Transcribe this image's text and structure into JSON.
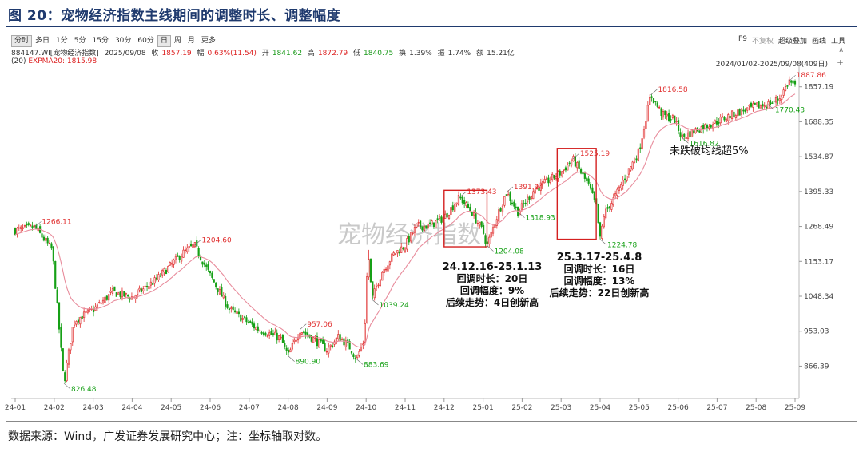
{
  "figure": {
    "title": "图 20：宠物经济指数主线期间的调整时长、调整幅度",
    "source": "数据来源：Wind，广发证券发展研究中心；注：坐标轴取对数。"
  },
  "toolbar": {
    "periods": [
      "分时",
      "多日",
      "1分",
      "5分",
      "15分",
      "30分",
      "60分",
      "日",
      "周",
      "月",
      "更多"
    ],
    "active_period": "日",
    "right_items": [
      "F9",
      "不复权",
      "超级叠加",
      "画线",
      "工具"
    ]
  },
  "quote": {
    "code": "884147.WI[宠物经济指数]",
    "date": "2025/09/08",
    "close_label": "收",
    "close": "1857.19",
    "change_label": "幅",
    "change": "0.63%(11.54)",
    "open_label": "开",
    "open": "1841.62",
    "high_label": "高",
    "high": "1872.79",
    "low_label": "低",
    "low": "1840.75",
    "turnover_label": "换",
    "turnover": "1.39%",
    "amplitude_label": "振",
    "amplitude": "1.74%",
    "amount_label": "额",
    "amount": "15.21亿"
  },
  "ema": {
    "label": "(20)",
    "name": "EXPMA20:",
    "value": "1815.98"
  },
  "range_text": "2024/01/02-2025/09/08(409日)",
  "colors": {
    "up": "#e03030",
    "down": "#16a016",
    "ema": "#e88c9c",
    "annotation": "#d42020",
    "title": "#1f3a6e"
  },
  "chart_data": {
    "type": "candlestick",
    "title": "宠物经济指数",
    "y_scale": "log",
    "y_ticks": [
      866.39,
      953.03,
      1048.34,
      1153.17,
      1268.49,
      1395.33,
      1534.87,
      1688.35,
      1857.19
    ],
    "y_tick_labels": [
      "866.39",
      "953.03",
      "1048.34",
      "1153.17",
      "1268.49",
      "1395.33",
      "1534.87",
      "1688.35",
      "1857.19"
    ],
    "x_labels": [
      "24-01",
      "24-02",
      "24-03",
      "24-04",
      "24-05",
      "24-06",
      "24-07",
      "24-08",
      "24-09",
      "24-10",
      "24-11",
      "24-12",
      "25-01",
      "25-02",
      "25-03",
      "25-04",
      "25-05",
      "25-06",
      "25-07",
      "25-08",
      "25-09"
    ],
    "anchors": [
      {
        "month": 0.0,
        "value": 1255
      },
      {
        "month": 0.5,
        "value": 1266.11
      },
      {
        "month": 0.95,
        "value": 1190
      },
      {
        "month": 1.25,
        "value": 826.48
      },
      {
        "month": 1.5,
        "value": 980
      },
      {
        "month": 2.0,
        "value": 1010
      },
      {
        "month": 2.5,
        "value": 1060
      },
      {
        "month": 3.0,
        "value": 1045
      },
      {
        "month": 3.6,
        "value": 1095
      },
      {
        "month": 4.3,
        "value": 1180
      },
      {
        "month": 4.6,
        "value": 1204.6
      },
      {
        "month": 5.0,
        "value": 1110
      },
      {
        "month": 5.5,
        "value": 1010
      },
      {
        "month": 6.2,
        "value": 960
      },
      {
        "month": 6.8,
        "value": 935
      },
      {
        "month": 7.0,
        "value": 890.9
      },
      {
        "month": 7.3,
        "value": 957.06
      },
      {
        "month": 7.7,
        "value": 930
      },
      {
        "month": 8.0,
        "value": 905
      },
      {
        "month": 8.3,
        "value": 940
      },
      {
        "month": 8.6,
        "value": 910
      },
      {
        "month": 8.75,
        "value": 883.69
      },
      {
        "month": 8.95,
        "value": 930
      },
      {
        "month": 9.05,
        "value": 1190
      },
      {
        "month": 9.15,
        "value": 1039.24
      },
      {
        "month": 9.4,
        "value": 1120
      },
      {
        "month": 9.7,
        "value": 1175
      },
      {
        "month": 10.0,
        "value": 1205
      },
      {
        "month": 10.3,
        "value": 1270
      },
      {
        "month": 10.6,
        "value": 1270
      },
      {
        "month": 11.0,
        "value": 1300
      },
      {
        "month": 11.4,
        "value": 1373.43
      },
      {
        "month": 11.7,
        "value": 1320
      },
      {
        "month": 12.0,
        "value": 1250
      },
      {
        "month": 12.1,
        "value": 1204.08
      },
      {
        "month": 12.4,
        "value": 1320
      },
      {
        "month": 12.6,
        "value": 1391.94
      },
      {
        "month": 12.9,
        "value": 1318.93
      },
      {
        "month": 13.3,
        "value": 1400
      },
      {
        "month": 13.7,
        "value": 1440
      },
      {
        "month": 14.0,
        "value": 1470
      },
      {
        "month": 14.3,
        "value": 1525.19
      },
      {
        "month": 14.7,
        "value": 1420
      },
      {
        "month": 14.9,
        "value": 1340
      },
      {
        "month": 15.0,
        "value": 1224.78
      },
      {
        "month": 15.1,
        "value": 1310
      },
      {
        "month": 15.4,
        "value": 1380
      },
      {
        "month": 15.7,
        "value": 1470
      },
      {
        "month": 16.0,
        "value": 1560
      },
      {
        "month": 16.3,
        "value": 1816.58
      },
      {
        "month": 16.6,
        "value": 1720
      },
      {
        "month": 16.9,
        "value": 1700
      },
      {
        "month": 17.1,
        "value": 1616.82
      },
      {
        "month": 17.5,
        "value": 1655
      },
      {
        "month": 18.0,
        "value": 1690
      },
      {
        "month": 18.5,
        "value": 1730
      },
      {
        "month": 19.0,
        "value": 1760
      },
      {
        "month": 19.3,
        "value": 1770.43
      },
      {
        "month": 19.6,
        "value": 1800
      },
      {
        "month": 19.85,
        "value": 1887.86
      },
      {
        "month": 20.0,
        "value": 1857.19
      }
    ],
    "price_labels": [
      {
        "text": "1266.11",
        "month": 0.5,
        "value": 1266.11,
        "pos": "above"
      },
      {
        "text": "826.48",
        "month": 1.25,
        "value": 826.48,
        "pos": "below"
      },
      {
        "text": "1204.60",
        "month": 4.6,
        "value": 1204.6,
        "pos": "above"
      },
      {
        "text": "890.90",
        "month": 7.0,
        "value": 890.9,
        "pos": "below"
      },
      {
        "text": "957.06",
        "month": 7.3,
        "value": 957.06,
        "pos": "above"
      },
      {
        "text": "883.69",
        "month": 8.75,
        "value": 883.69,
        "pos": "below"
      },
      {
        "text": "1039.24",
        "month": 9.15,
        "value": 1039.24,
        "pos": "below"
      },
      {
        "text": "1373.43",
        "month": 11.4,
        "value": 1373.43,
        "pos": "above"
      },
      {
        "text": "1204.08",
        "month": 12.1,
        "value": 1204.08,
        "pos": "below"
      },
      {
        "text": "1391.94",
        "month": 12.6,
        "value": 1391.94,
        "pos": "above"
      },
      {
        "text": "1318.93",
        "month": 12.9,
        "value": 1318.93,
        "pos": "below"
      },
      {
        "text": "1525.19",
        "month": 14.3,
        "value": 1525.19,
        "pos": "above"
      },
      {
        "text": "1224.78",
        "month": 15.0,
        "value": 1224.78,
        "pos": "below"
      },
      {
        "text": "1816.58",
        "month": 16.3,
        "value": 1816.58,
        "pos": "above"
      },
      {
        "text": "1616.82",
        "month": 17.1,
        "value": 1616.82,
        "pos": "below"
      },
      {
        "text": "1770.43",
        "month": 19.3,
        "value": 1770.43,
        "pos": "below"
      },
      {
        "text": "1887.86",
        "month": 19.85,
        "value": 1887.86,
        "pos": "above"
      }
    ],
    "highlight_boxes": [
      {
        "month_start": 11.0,
        "month_end": 12.1,
        "value_top": 1400,
        "value_bottom": 1200
      },
      {
        "month_start": 13.9,
        "month_end": 14.9,
        "value_top": 1570,
        "value_bottom": 1225
      }
    ],
    "watermark": "宠物经济指数",
    "annotations": [
      {
        "lines": [
          "24.12.16-25.1.13",
          "回调时长：20日",
          "回调幅度：9%",
          "后续走势：4日创新高"
        ]
      },
      {
        "lines": [
          "25.3.17-25.4.8",
          "回调时长：16日",
          "回调幅度：13%",
          "后续走势：22日创新高"
        ]
      }
    ],
    "note": "未跌破均线超5%"
  }
}
